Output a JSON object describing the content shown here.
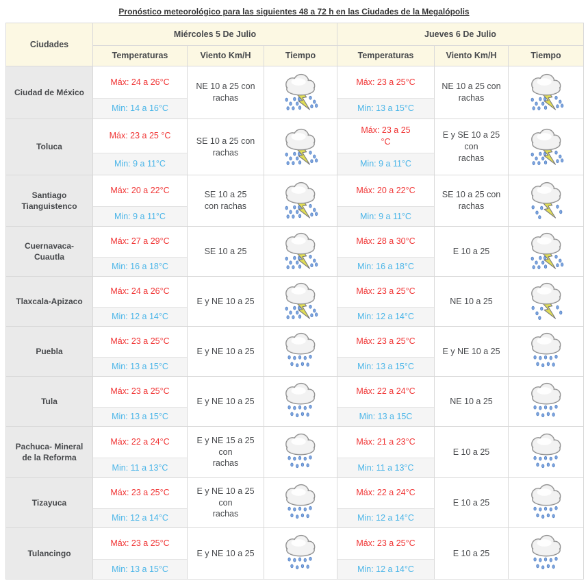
{
  "title": "Pronóstico meteorológico para las siguientes 48 a 72 h en las Ciudades de la Megalópolis",
  "table": {
    "city_header": "Ciudades",
    "day_groups": [
      {
        "label": "Miércoles 5 De Julio",
        "columns": [
          "Temperaturas",
          "Viento Km/H",
          "Tiempo"
        ]
      },
      {
        "label": "Jueves 6 De Julio",
        "columns": [
          "Temperaturas",
          "Viento Km/H",
          "Tiempo"
        ]
      }
    ],
    "rows": [
      {
        "city": "Ciudad de México",
        "days": [
          {
            "max": "Máx: 24 a 26°C",
            "min": "Min: 14 a 16°C",
            "wind": "NE 10 a 25 con\nrachas",
            "icon": "storm-heavy"
          },
          {
            "max": "Máx: 23 a 25°C",
            "min": "Min: 13 a 15°C",
            "wind": "NE 10 a 25 con\nrachas",
            "icon": "storm-heavy"
          }
        ]
      },
      {
        "city": "Toluca",
        "days": [
          {
            "max": "Máx: 23 a 25 °C",
            "min": "Min: 9 a 11°C",
            "wind": "SE 10 a 25 con\nrachas",
            "icon": "storm-heavy"
          },
          {
            "max": "Máx: 23 a 25\n°C",
            "min": "Min: 9 a 11°C",
            "wind": "E y SE 10 a 25 con\nrachas",
            "icon": "storm-heavy"
          }
        ]
      },
      {
        "city": "Santiago Tianguistenco",
        "days": [
          {
            "max": "Máx: 20 a 22°C",
            "min": "Min: 9 a 11°C",
            "wind": "SE 10 a 25\ncon rachas",
            "icon": "storm-heavy"
          },
          {
            "max": "Máx: 20 a 22°C",
            "min": "Min: 9 a 11°C",
            "wind": "SE 10 a 25 con\nrachas",
            "icon": "storm-light"
          }
        ]
      },
      {
        "city": "Cuernavaca-Cuautla",
        "days": [
          {
            "max": "Máx: 27 a 29°C",
            "min": "Min: 16 a 18°C",
            "wind": "SE 10 a 25",
            "icon": "storm-heavy"
          },
          {
            "max": "Máx: 28 a 30°C",
            "min": "Min: 16 a 18°C",
            "wind": "E 10 a 25",
            "icon": "storm-heavy"
          }
        ]
      },
      {
        "city": "Tlaxcala-Apizaco",
        "days": [
          {
            "max": "Máx: 24 a 26°C",
            "min": "Min: 12 a 14°C",
            "wind": "E y NE 10 a 25",
            "icon": "storm-heavy"
          },
          {
            "max": "Máx: 23 a 25°C",
            "min": "Min: 12 a 14°C",
            "wind": "NE 10 a 25",
            "icon": "storm-light"
          }
        ]
      },
      {
        "city": "Puebla",
        "days": [
          {
            "max": "Máx: 23 a 25°C",
            "min": "Min: 13 a 15°C",
            "wind": "E y NE 10 a 25",
            "icon": "rain"
          },
          {
            "max": "Máx: 23 a 25°C",
            "min": "Min: 13 a 15°C",
            "wind": "E y NE 10 a 25",
            "icon": "rain"
          }
        ]
      },
      {
        "city": "Tula",
        "days": [
          {
            "max": "Máx: 23 a 25°C",
            "min": "Min: 13 a 15°C",
            "wind": "E y NE 10 a 25",
            "icon": "rain"
          },
          {
            "max": "Máx: 22 a 24°C",
            "min": "Min: 13 a 15C",
            "wind": "NE 10 a 25",
            "icon": "rain"
          }
        ]
      },
      {
        "city": "Pachuca- Mineral de la Reforma",
        "days": [
          {
            "max": "Máx: 22 a 24°C",
            "min": "Min: 11 a 13°C",
            "wind": "E y NE 15 a 25 con\nrachas",
            "icon": "rain"
          },
          {
            "max": "Máx: 21 a 23°C",
            "min": "Min: 11 a 13°C",
            "wind": "E 10 a 25",
            "icon": "rain"
          }
        ]
      },
      {
        "city": "Tizayuca",
        "days": [
          {
            "max": "Máx: 23 a 25°C",
            "min": "Min: 12 a 14°C",
            "wind": "E y NE 10 a 25 con\nrachas",
            "icon": "rain"
          },
          {
            "max": "Máx: 22 a 24°C",
            "min": "Min: 12 a 14°C",
            "wind": "E 10 a 25",
            "icon": "rain"
          }
        ]
      },
      {
        "city": "Tulancingo",
        "days": [
          {
            "max": "Máx: 23 a 25°C",
            "min": "Min: 13 a 15°C",
            "wind": "E y NE 10 a 25",
            "icon": "rain"
          },
          {
            "max": "Máx: 23 a 25°C",
            "min": "Min: 12 a 14°C",
            "wind": "E 10 a 25",
            "icon": "rain"
          }
        ]
      }
    ]
  },
  "colors": {
    "max_temperature": "#f03434",
    "min_temperature": "#4ab5e8",
    "header_background": "#fcf8e3",
    "city_background": "#eaeaea",
    "min_row_background": "#f5f5f5",
    "border": "#d9d9d9",
    "text": "#47494c"
  },
  "icons": {
    "storm-heavy": "cloud with heavy rain and lightning",
    "storm-light": "cloud with light rain and lightning",
    "rain": "cloud with rain"
  }
}
